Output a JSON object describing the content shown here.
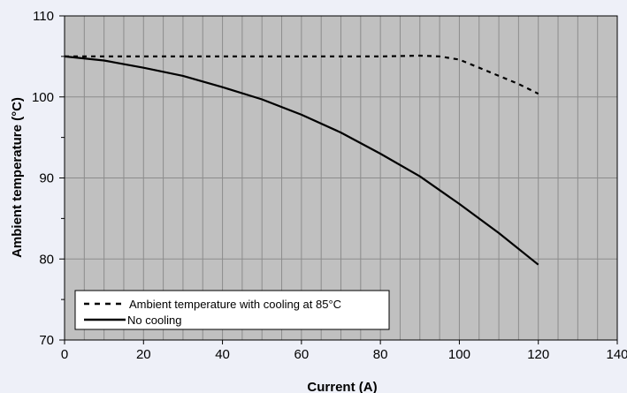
{
  "chart_data": {
    "type": "line",
    "xlabel": "Current (A)",
    "ylabel": "Ambient temperature (°C)",
    "xlim": [
      0,
      140
    ],
    "ylim": [
      70,
      110
    ],
    "x_ticks": [
      0,
      20,
      40,
      60,
      80,
      100,
      120,
      140
    ],
    "y_ticks": [
      70,
      80,
      90,
      100,
      110
    ],
    "grid": true,
    "legend_position": "bottom-left",
    "colors": {
      "plot_background": "#c0c0c0",
      "grid": "#8c8c8c",
      "line": "#000000",
      "page_background": "#eef0f8"
    },
    "series": [
      {
        "name": "Ambient temperature with cooling at 85°C",
        "style": "dashed",
        "x": [
          0,
          10,
          20,
          30,
          40,
          50,
          60,
          70,
          80,
          90,
          95,
          100,
          105,
          110,
          115,
          120
        ],
        "y": [
          105,
          105,
          105,
          105,
          105,
          105,
          105,
          105,
          105,
          105.1,
          105,
          104.6,
          103.6,
          102.6,
          101.6,
          100.4
        ]
      },
      {
        "name": "No cooling",
        "style": "solid",
        "x": [
          0,
          10,
          20,
          30,
          40,
          50,
          60,
          70,
          80,
          90,
          100,
          110,
          120
        ],
        "y": [
          105,
          104.5,
          103.6,
          102.6,
          101.2,
          99.7,
          97.8,
          95.6,
          93.0,
          90.2,
          86.8,
          83.2,
          79.3
        ]
      }
    ]
  }
}
